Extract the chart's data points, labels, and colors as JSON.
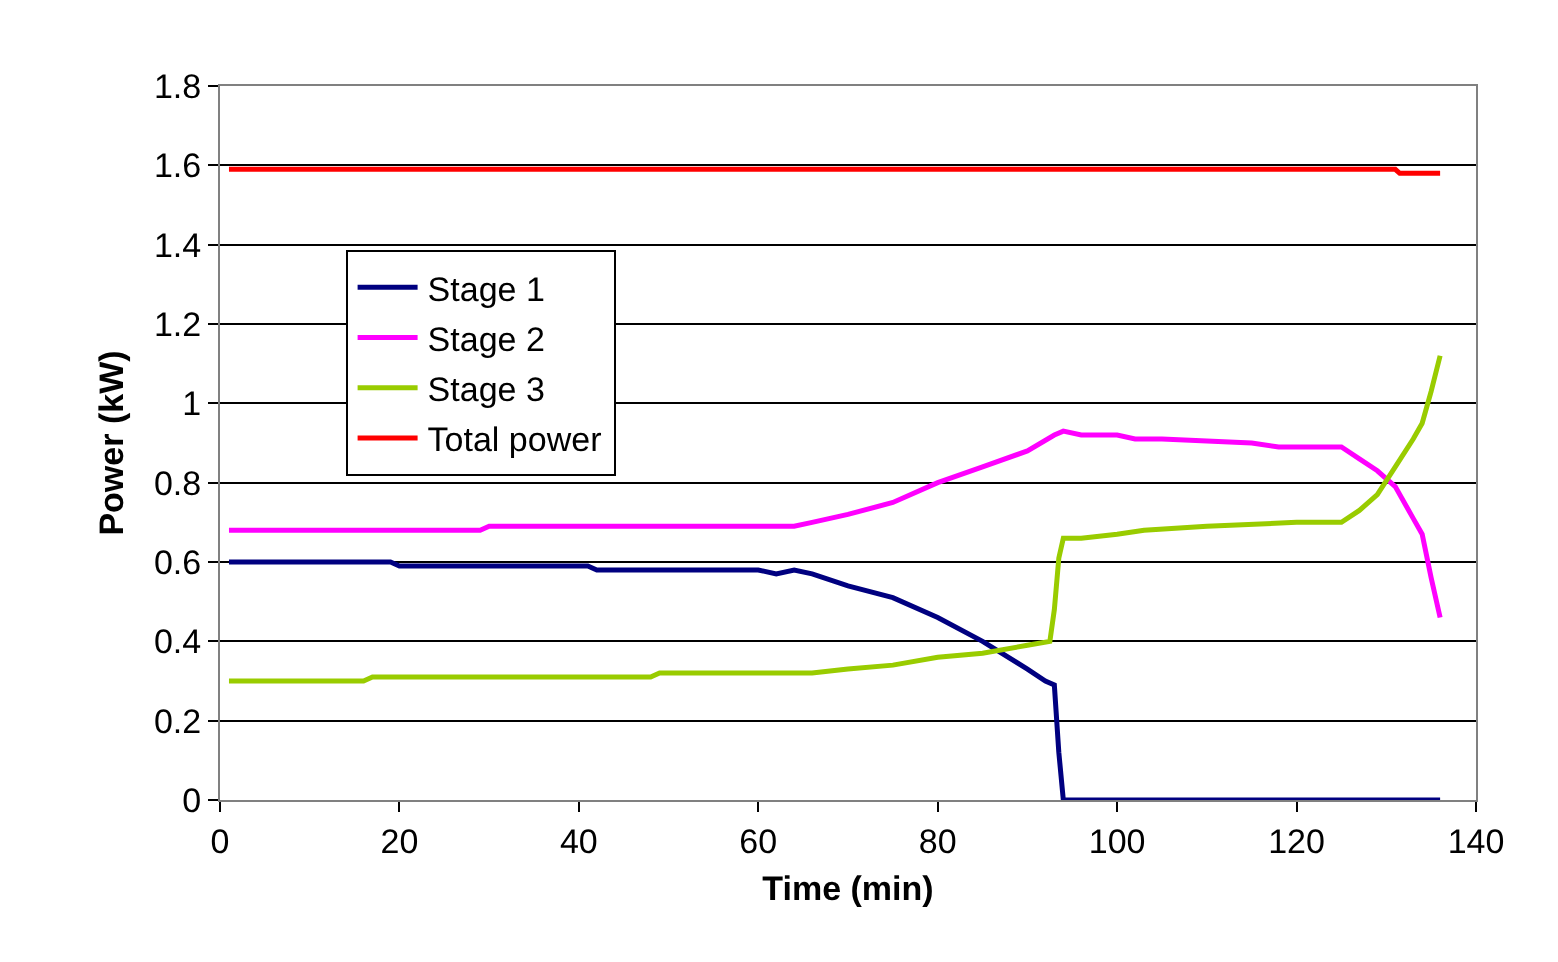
{
  "chart_data": {
    "type": "line",
    "xlabel": "Time (min)",
    "ylabel": "Power (kW)",
    "xlim": [
      0,
      140
    ],
    "xticks": [
      0,
      20,
      40,
      60,
      80,
      100,
      120,
      140
    ],
    "ylim": [
      0,
      1.8
    ],
    "yticks": [
      0,
      0.2,
      0.4,
      0.6,
      0.8,
      1,
      1.2,
      1.4,
      1.6,
      1.8
    ],
    "grid": "y",
    "legend": "left",
    "marker": "none",
    "line_style": "solid",
    "series": [
      {
        "name": "Stage 1",
        "color": "#000080",
        "x": [
          1,
          19,
          20,
          41,
          42,
          60,
          62,
          64,
          66,
          70,
          75,
          80,
          85,
          90,
          92,
          93,
          93.5,
          94,
          100,
          136
        ],
        "values": [
          0.6,
          0.6,
          0.59,
          0.59,
          0.58,
          0.58,
          0.57,
          0.58,
          0.57,
          0.54,
          0.51,
          0.46,
          0.4,
          0.33,
          0.3,
          0.29,
          0.12,
          0,
          0,
          0
        ]
      },
      {
        "name": "Stage 2",
        "color": "#ff00ff",
        "x": [
          1,
          29,
          30,
          64,
          66,
          70,
          75,
          80,
          85,
          90,
          93,
          94,
          96,
          100,
          102,
          105,
          115,
          118,
          125,
          127,
          129,
          131,
          133,
          134,
          135,
          136
        ],
        "values": [
          0.68,
          0.68,
          0.69,
          0.69,
          0.7,
          0.72,
          0.75,
          0.8,
          0.84,
          0.88,
          0.92,
          0.93,
          0.92,
          0.92,
          0.91,
          0.91,
          0.9,
          0.89,
          0.89,
          0.86,
          0.83,
          0.79,
          0.71,
          0.67,
          0.56,
          0.46
        ]
      },
      {
        "name": "Stage 3",
        "color": "#99cc00",
        "x": [
          1,
          16,
          17,
          48,
          49,
          66,
          70,
          75,
          80,
          85,
          90,
          92.5,
          93,
          93.5,
          94,
          96,
          100,
          103,
          110,
          120,
          125,
          127,
          129,
          131,
          133,
          134,
          135,
          136
        ],
        "values": [
          0.3,
          0.3,
          0.31,
          0.31,
          0.32,
          0.32,
          0.33,
          0.34,
          0.36,
          0.37,
          0.39,
          0.4,
          0.48,
          0.61,
          0.66,
          0.66,
          0.67,
          0.68,
          0.69,
          0.7,
          0.7,
          0.73,
          0.77,
          0.84,
          0.91,
          0.95,
          1.03,
          1.12
        ]
      },
      {
        "name": "Total power",
        "color": "#ff0000",
        "x": [
          1,
          131,
          131.5,
          136
        ],
        "values": [
          1.59,
          1.59,
          1.58,
          1.58
        ]
      }
    ]
  }
}
